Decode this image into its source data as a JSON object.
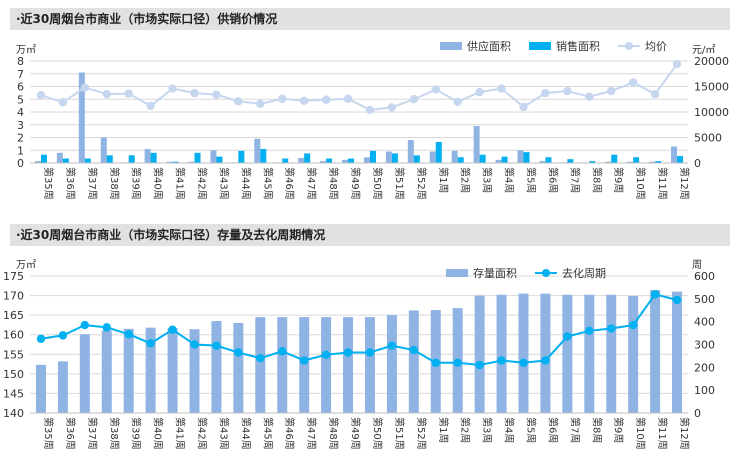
{
  "chart1_title": "·近30周烟台市商业（市场实际口径）供销价情况",
  "chart2_title": "·近30周烟台市商业（市场实际口径）存量及去化周期情况",
  "colors": {
    "supply": "#8fb4e3",
    "sales": "#00b0f0",
    "price": "#c6d6ee",
    "stock": "#8fb4e3",
    "cycle": "#00b0f0",
    "grid": "#d9d9d9",
    "title_bg": "#e1e1e1"
  },
  "chart_data": [
    {
      "type": "bar",
      "title": "·近30周烟台市商业（市场实际口径）供销价情况",
      "categories": [
        "第35周",
        "第36周",
        "第37周",
        "第38周",
        "第39周",
        "第40周",
        "第41周",
        "第42周",
        "第43周",
        "第44周",
        "第45周",
        "第46周",
        "第47周",
        "第48周",
        "第49周",
        "第50周",
        "第51周",
        "第52周",
        "第1周",
        "第2周",
        "第3周",
        "第4周",
        "第5周",
        "第6周",
        "第7周",
        "第8周",
        "第9周",
        "第10周",
        "第11周",
        "第12周"
      ],
      "left_unit": "万㎡",
      "right_unit": "元/㎡",
      "ylim": [
        0,
        8
      ],
      "ylim_right": [
        0,
        20000
      ],
      "yticks": [
        "0",
        "1",
        "2",
        "3",
        "4",
        "5",
        "6",
        "7",
        "8"
      ],
      "yticks_right": [
        "0",
        "5000",
        "10000",
        "15000",
        "20000"
      ],
      "legend_position": "top-right",
      "series": [
        {
          "name": "供应面积",
          "kind": "bar",
          "axis": "left",
          "values": [
            0.15,
            0.8,
            7.1,
            2.0,
            0.05,
            1.1,
            0.1,
            0.1,
            1.0,
            0.05,
            1.9,
            0.05,
            0.4,
            0.15,
            0.25,
            0.45,
            0.9,
            1.8,
            0.9,
            0.95,
            2.9,
            0.25,
            1.0,
            0.15,
            0.05,
            0.05,
            0.1,
            0.1,
            0.1,
            1.3
          ]
        },
        {
          "name": "销售面积",
          "kind": "bar",
          "axis": "left",
          "values": [
            0.65,
            0.35,
            0.35,
            0.6,
            0.6,
            0.8,
            0.1,
            0.8,
            0.5,
            0.95,
            1.1,
            0.35,
            0.75,
            0.35,
            0.35,
            0.95,
            0.75,
            0.6,
            1.65,
            0.45,
            0.65,
            0.5,
            0.85,
            0.45,
            0.3,
            0.15,
            0.65,
            0.45,
            0.15,
            0.55
          ]
        },
        {
          "name": "均价",
          "kind": "line",
          "axis": "right",
          "values": [
            13300,
            11900,
            14800,
            13500,
            13600,
            11200,
            14600,
            13700,
            13400,
            12100,
            11600,
            12600,
            12200,
            12400,
            12600,
            10400,
            10900,
            12500,
            14400,
            12000,
            13900,
            14600,
            11000,
            13700,
            14100,
            13000,
            14100,
            15800,
            13500,
            19400
          ]
        }
      ]
    },
    {
      "type": "bar",
      "title": "·近30周烟台市商业（市场实际口径）存量及去化周期情况",
      "categories": [
        "第35周",
        "第36周",
        "第37周",
        "第38周",
        "第39周",
        "第40周",
        "第41周",
        "第42周",
        "第43周",
        "第44周",
        "第45周",
        "第46周",
        "第47周",
        "第48周",
        "第49周",
        "第50周",
        "第51周",
        "第52周",
        "第1周",
        "第2周",
        "第3周",
        "第4周",
        "第5周",
        "第6周",
        "第7周",
        "第8周",
        "第9周",
        "第10周",
        "第11周",
        "第12周"
      ],
      "left_unit": "万㎡",
      "right_unit": "周",
      "ylim": [
        140,
        175
      ],
      "ylim_right": [
        0,
        600
      ],
      "yticks": [
        "140",
        "145",
        "150",
        "155",
        "160",
        "165",
        "170",
        "175"
      ],
      "yticks_right": [
        "0",
        "100",
        "200",
        "300",
        "400",
        "500",
        "600"
      ],
      "legend_position": "top-right",
      "series": [
        {
          "name": "存量面积",
          "kind": "bar",
          "axis": "left",
          "values": [
            152.3,
            153.2,
            160.1,
            161.1,
            161.5,
            161.8,
            161.7,
            161.4,
            163.5,
            163.0,
            164.5,
            164.5,
            164.5,
            164.5,
            164.5,
            164.5,
            165.0,
            166.2,
            166.3,
            166.8,
            170.0,
            170.2,
            170.5,
            170.5,
            170.2,
            170.2,
            170.2,
            169.9,
            171.4,
            171.0
          ]
        },
        {
          "name": "去化周期",
          "kind": "line",
          "axis": "right",
          "values": [
            325,
            340,
            385,
            375,
            345,
            305,
            365,
            300,
            295,
            265,
            240,
            270,
            230,
            255,
            265,
            265,
            295,
            275,
            220,
            220,
            210,
            230,
            220,
            230,
            335,
            360,
            370,
            385,
            520,
            495
          ]
        }
      ]
    }
  ]
}
